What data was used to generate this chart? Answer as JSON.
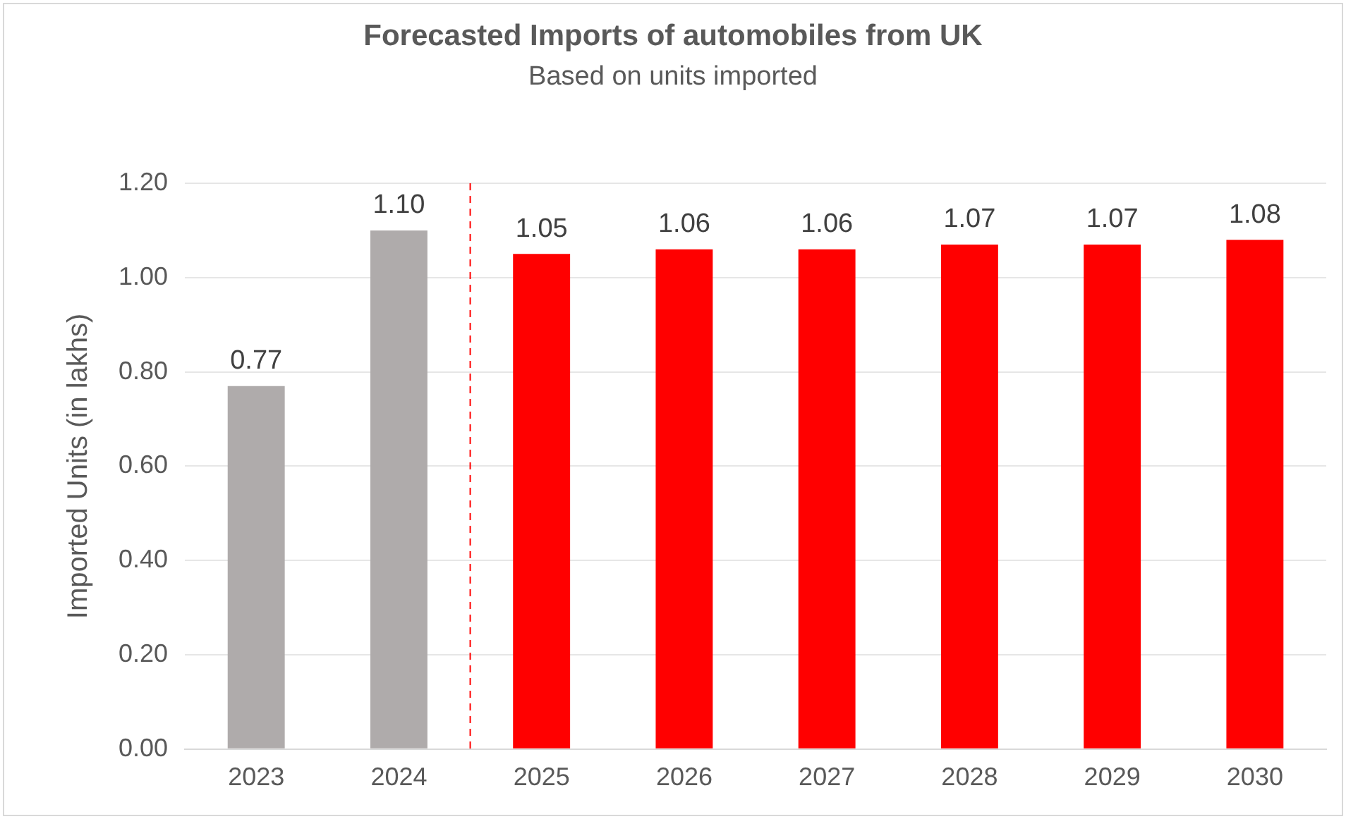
{
  "chart_data": {
    "type": "bar",
    "title": "Forecasted Imports of automobiles from UK",
    "subtitle": "Based on units imported",
    "ylabel": "Imported Units (in lakhs)",
    "categories": [
      "2023",
      "2024",
      "2025",
      "2026",
      "2027",
      "2028",
      "2029",
      "2030"
    ],
    "values": [
      0.77,
      1.1,
      1.05,
      1.06,
      1.06,
      1.07,
      1.07,
      1.08
    ],
    "value_labels": [
      "0.77",
      "1.10",
      "1.05",
      "1.06",
      "1.06",
      "1.07",
      "1.07",
      "1.08"
    ],
    "colors": [
      "#afabab",
      "#afabab",
      "#ff0000",
      "#ff0000",
      "#ff0000",
      "#ff0000",
      "#ff0000",
      "#ff0000"
    ],
    "ylim": [
      0,
      1.2
    ],
    "yticks": [
      {
        "value": 0,
        "label": "0.00"
      },
      {
        "value": 0.2,
        "label": "0.20"
      },
      {
        "value": 0.4,
        "label": "0.40"
      },
      {
        "value": 0.6,
        "label": "0.60"
      },
      {
        "value": 0.8,
        "label": "0.80"
      },
      {
        "value": 1,
        "label": "1.00"
      },
      {
        "value": 1.2,
        "label": "1.20"
      }
    ],
    "grid": "y",
    "legend": false,
    "ref_lines": [
      {
        "axis": "x",
        "value": "2025",
        "color": "#ff0000",
        "line_style": "dashed"
      }
    ]
  }
}
